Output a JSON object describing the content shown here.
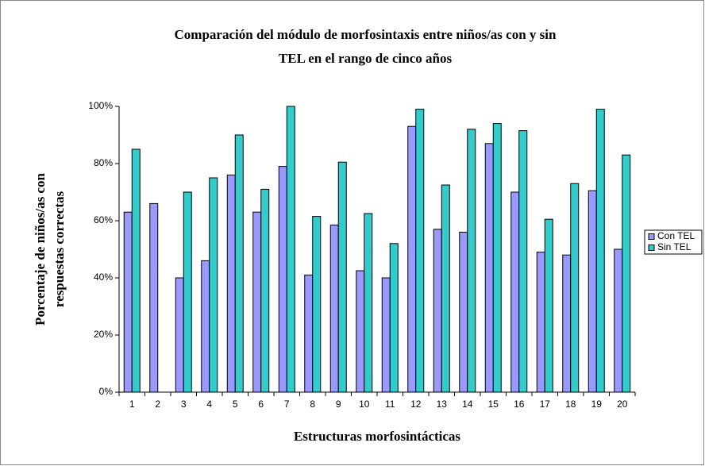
{
  "chart_data": {
    "type": "bar",
    "title": [
      "Comparación del módulo de morfosintaxis entre niños/as con y sin",
      "TEL en el rango de cinco años"
    ],
    "x_label": "Estructuras morfosintácticas",
    "y_label": [
      "Porcentaje de niños/as con",
      "respuestas correctas"
    ],
    "categories": [
      "1",
      "2",
      "3",
      "4",
      "5",
      "6",
      "7",
      "8",
      "9",
      "10",
      "11",
      "12",
      "13",
      "14",
      "15",
      "16",
      "17",
      "18",
      "19",
      "20"
    ],
    "series": [
      {
        "name": "Con TEL",
        "color": "#9999ff",
        "values": [
          63,
          66,
          40,
          46,
          76,
          63,
          79,
          41,
          58.5,
          42.5,
          40,
          93,
          57,
          56,
          87,
          70,
          49,
          48,
          70.5,
          50
        ]
      },
      {
        "name": "Sin TEL",
        "color": "#33cccc",
        "values": [
          85,
          null,
          70,
          75,
          90,
          71,
          100,
          61.5,
          80.5,
          62.5,
          52,
          99,
          72.5,
          92,
          94,
          91.5,
          60.5,
          73,
          99,
          83
        ]
      }
    ],
    "ylim": [
      0,
      100
    ],
    "yticks": [
      {
        "value": 0,
        "label": "0%"
      },
      {
        "value": 20,
        "label": "20%"
      },
      {
        "value": 40,
        "label": "40%"
      },
      {
        "value": 60,
        "label": "60%"
      },
      {
        "value": 80,
        "label": "80%"
      },
      {
        "value": 100,
        "label": "100%"
      }
    ],
    "grid": false,
    "legend": "right"
  }
}
